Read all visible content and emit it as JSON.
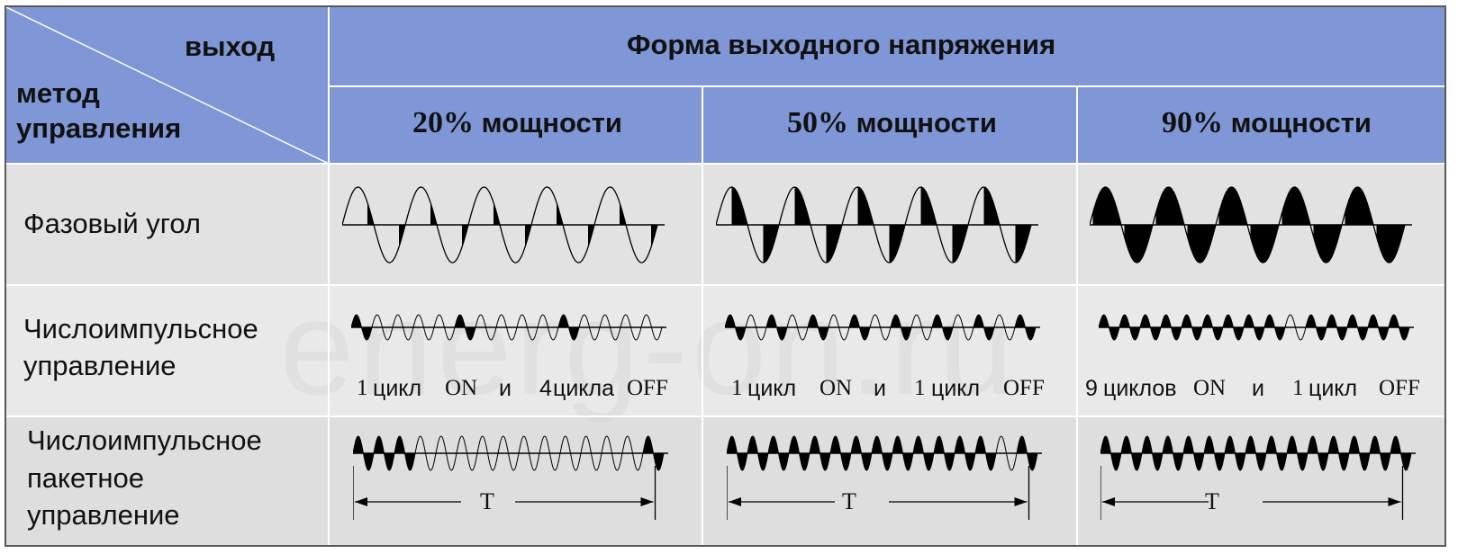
{
  "header": {
    "corner_top": "выход",
    "corner_bottom_line1": "метод",
    "corner_bottom_line2": "управления",
    "main_title": "Форма выходного напряжения",
    "columns": [
      {
        "pct": "20%",
        "label": "мощности",
        "on_ratio": 0.2
      },
      {
        "pct": "50%",
        "label": "мощности",
        "on_ratio": 0.5
      },
      {
        "pct": "90%",
        "label": "мощности",
        "on_ratio": 0.9
      }
    ]
  },
  "rows": [
    {
      "name": "phase-angle",
      "lines": [
        "Фазовый угол"
      ]
    },
    {
      "name": "pulse-control",
      "lines": [
        "Числоимпульсное",
        "управление"
      ]
    },
    {
      "name": "burst-control",
      "lines": [
        "Числоимпульсное",
        "пакетное",
        "управление"
      ]
    }
  ],
  "captions": [
    {
      "n1": "1",
      "w1": "цикл",
      "on": "ON",
      "and": "и",
      "n2": "4",
      "w2": "цикла",
      "off": "OFF"
    },
    {
      "n1": "1",
      "w1": "цикл",
      "on": "ON",
      "and": "и",
      "n2": "1",
      "w2": "цикл",
      "off": "OFF"
    },
    {
      "n1": "9",
      "w1": "циклов",
      "on": "ON",
      "and": "и",
      "n2": "1",
      "w2": "цикл",
      "off": "OFF"
    }
  ],
  "period_label": "T",
  "watermark": "energ-on.ru",
  "colors": {
    "header_bg": "#7f97d6",
    "waveform": "#000000"
  }
}
